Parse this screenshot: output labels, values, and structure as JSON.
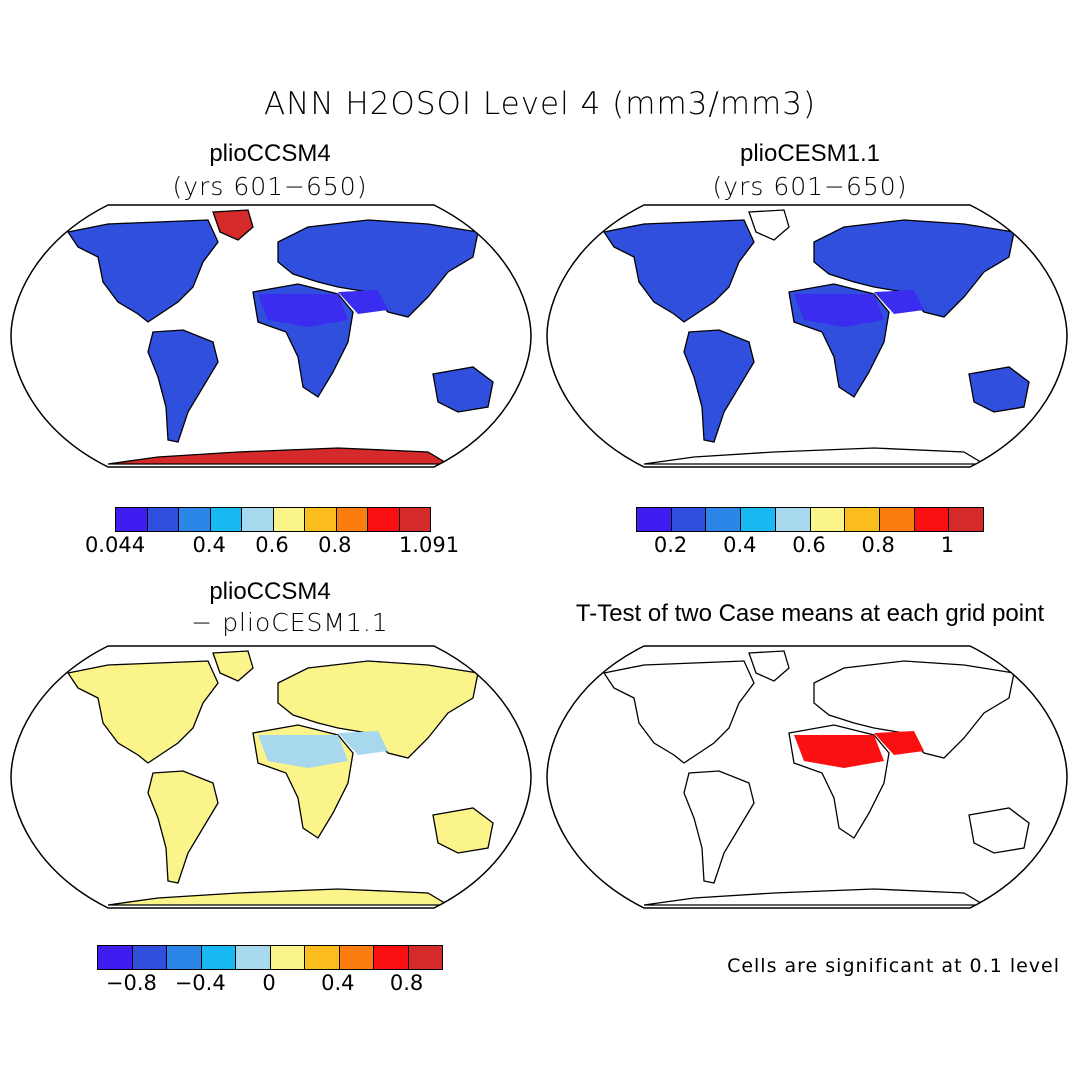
{
  "figure_title": "ANN H2OSOI Level 4 (mm3/mm3)",
  "panels": [
    {
      "title": "plioCCSM4",
      "subtitle": "(yrs 601−650)"
    },
    {
      "title": "plioCESM1.1",
      "subtitle": "(yrs 601−650)"
    },
    {
      "title": "plioCCSM4",
      "subtitle": "− plioCESM1.1"
    },
    {
      "title": "T-Test of two Case means at each grid point",
      "subtitle": ""
    }
  ],
  "colorbars": [
    {
      "colors": [
        "#3f1cf0",
        "#2f4fdc",
        "#2b86e8",
        "#18b8f2",
        "#a8d8ee",
        "#fbf48a",
        "#fbbd1e",
        "#fb7d10",
        "#fa1010",
        "#d42a2a"
      ],
      "labels": [
        "0.044",
        "0.4",
        "0.6",
        "0.8",
        "1.091"
      ],
      "label_pos": [
        0,
        0.3,
        0.5,
        0.7,
        1
      ]
    },
    {
      "colors": [
        "#3f1cf0",
        "#2f4fdc",
        "#2b86e8",
        "#18b8f2",
        "#a8d8ee",
        "#fbf48a",
        "#fbbd1e",
        "#fb7d10",
        "#fa1010",
        "#d42a2a"
      ],
      "labels": [
        "0.2",
        "0.4",
        "0.6",
        "0.8",
        "1"
      ],
      "label_pos": [
        0.1,
        0.3,
        0.5,
        0.7,
        0.9
      ]
    },
    {
      "colors": [
        "#3f1cf0",
        "#2f4fdc",
        "#2b86e8",
        "#18b8f2",
        "#a8d8ee",
        "#fbf48a",
        "#fbbd1e",
        "#fb7d10",
        "#fa1010",
        "#d42a2a"
      ],
      "labels": [
        "−0.8",
        "−0.4",
        "0",
        "0.4",
        "0.8"
      ],
      "label_pos": [
        0.1,
        0.3,
        0.5,
        0.7,
        0.9
      ]
    }
  ],
  "significance_note": "Cells are significant at 0.1 level",
  "map_fills": [
    {
      "land": "#2f4fdc",
      "dry": "#3b2df0",
      "antarctica": "#d42a2a",
      "greenland": "#d42a2a",
      "ocean": "#ffffff"
    },
    {
      "land": "#2f4fdc",
      "dry": "#3b2df0",
      "antarctica": "#ffffff",
      "greenland": "#ffffff",
      "ocean": "#ffffff"
    },
    {
      "land": "#fbf48a",
      "dry": "#a8d8ee",
      "antarctica": "#fbf48a",
      "greenland": "#fbf48a",
      "ocean": "#ffffff"
    },
    {
      "land": "#ffffff",
      "dry": "#fa1010",
      "antarctica": "#ffffff",
      "greenland": "#ffffff",
      "ocean": "#ffffff"
    }
  ]
}
